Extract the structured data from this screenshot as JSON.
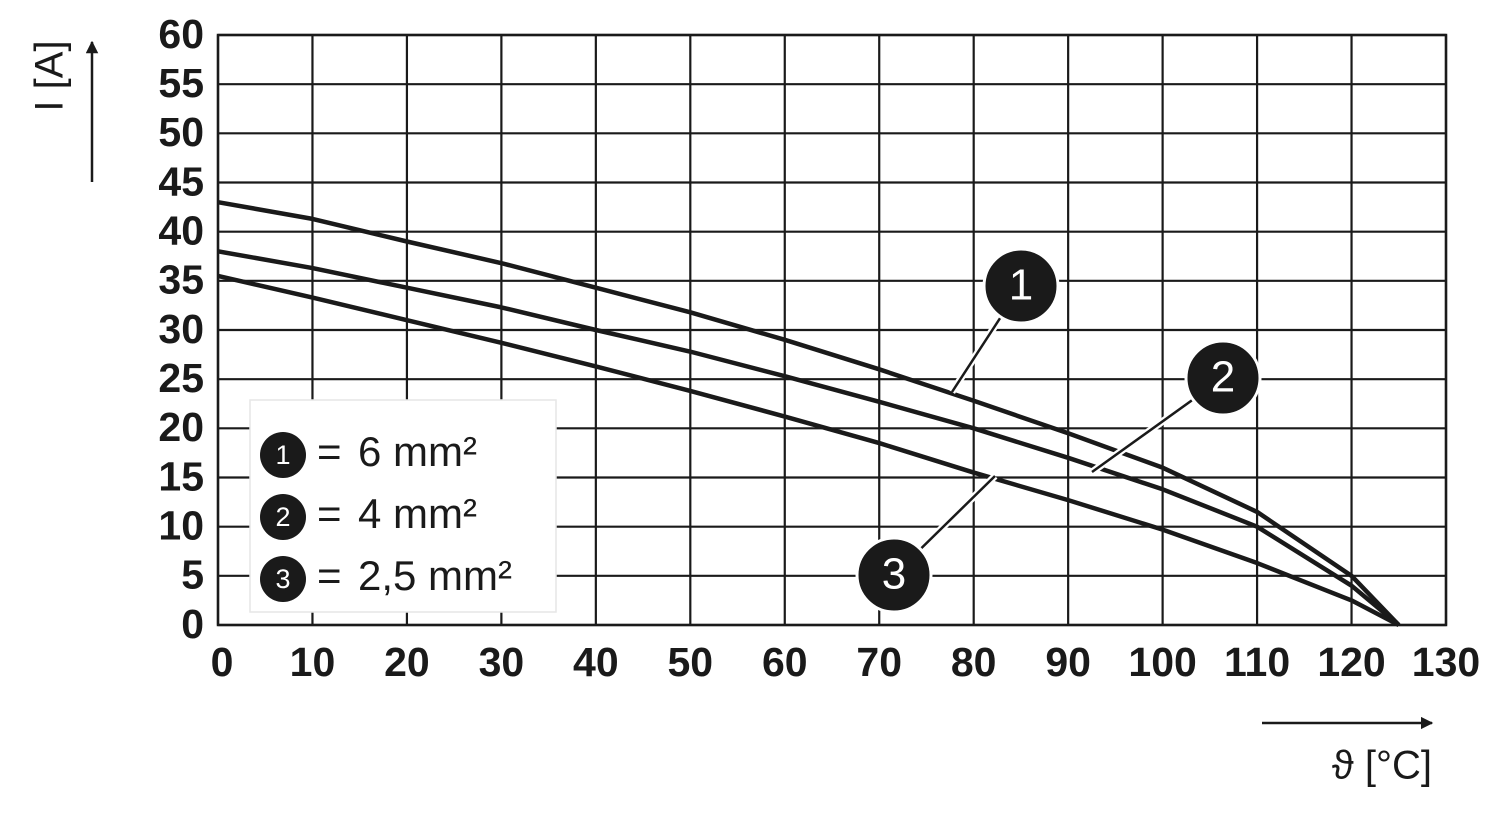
{
  "chart_data": {
    "type": "line",
    "y_label": "I [A]",
    "x_label": "ϑ [°C]",
    "x": [
      0,
      10,
      20,
      30,
      40,
      50,
      60,
      70,
      80,
      90,
      100,
      110,
      120,
      125
    ],
    "series": [
      {
        "name": "6 mm²",
        "label": "1",
        "color": "#1a1a1a",
        "values": [
          43,
          41.3,
          39,
          36.8,
          34.3,
          31.8,
          29,
          26,
          22.8,
          19.5,
          16,
          11.5,
          5,
          0
        ]
      },
      {
        "name": "4 mm²",
        "label": "2",
        "color": "#1a1a1a",
        "values": [
          38,
          36.3,
          34.3,
          32.3,
          30,
          27.8,
          25.3,
          22.7,
          20,
          17,
          13.8,
          10,
          4,
          0
        ]
      },
      {
        "name": "2,5 mm²",
        "label": "3",
        "color": "#1a1a1a",
        "values": [
          35.5,
          33.3,
          31,
          28.7,
          26.3,
          23.8,
          21.2,
          18.5,
          15.5,
          12.7,
          9.7,
          6.3,
          2.5,
          0
        ]
      }
    ],
    "legend_separator": "=",
    "xlim": [
      0,
      130
    ],
    "xticks": [
      0,
      10,
      20,
      30,
      40,
      50,
      60,
      70,
      80,
      90,
      100,
      110,
      120,
      130
    ],
    "ylim": [
      0,
      60
    ],
    "yticks": [
      0,
      5,
      10,
      15,
      20,
      25,
      30,
      35,
      40,
      45,
      50,
      55,
      60
    ],
    "grid": true,
    "legend": "lower left"
  }
}
